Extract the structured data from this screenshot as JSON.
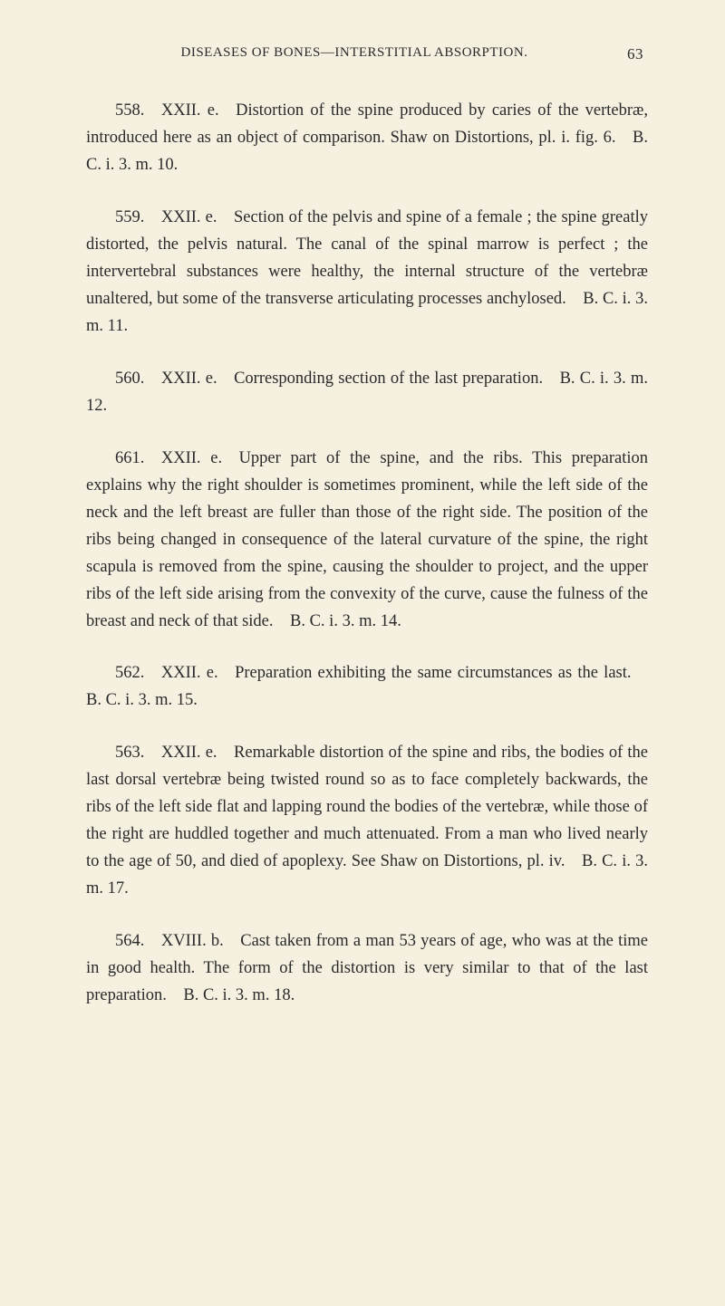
{
  "header": {
    "title": "DISEASES OF BONES—INTERSTITIAL ABSORPTION.",
    "pageNumber": "63"
  },
  "entries": [
    {
      "text": "558. XXII. e. Distortion of the spine produced by caries of the vertebræ, introduced here as an object of comparison. Shaw on Distortions, pl. i. fig. 6. B. C. i. 3. m. 10."
    },
    {
      "text": "559. XXII. e. Section of the pelvis and spine of a female ; the spine greatly distorted, the pelvis natural. The canal of the spinal marrow is perfect ; the intervertebral substances were healthy, the internal structure of the vertebræ unaltered, but some of the transverse articulating processes anchylosed. B. C. i. 3. m. 11."
    },
    {
      "text": "560. XXII. e. Corresponding section of the last preparation. B. C. i. 3. m. 12."
    },
    {
      "text": "661. XXII. e. Upper part of the spine, and the ribs. This preparation explains why the right shoulder is sometimes prominent, while the left side of the neck and the left breast are fuller than those of the right side. The position of the ribs being changed in consequence of the lateral curvature of the spine, the right scapula is removed from the spine, causing the shoulder to project, and the upper ribs of the left side arising from the convexity of the curve, cause the fulness of the breast and neck of that side. B. C. i. 3. m. 14."
    },
    {
      "text": "562. XXII. e. Preparation exhibiting the same circumstances as the last. B. C. i. 3. m. 15."
    },
    {
      "text": "563. XXII. e. Remarkable distortion of the spine and ribs, the bodies of the last dorsal vertebræ being twisted round so as to face completely backwards, the ribs of the left side flat and lapping round the bodies of the vertebræ, while those of the right are huddled together and much attenuated. From a man who lived nearly to the age of 50, and died of apoplexy. See Shaw on Distortions, pl. iv. B. C. i. 3. m. 17."
    },
    {
      "text": "564. XVIII. b. Cast taken from a man 53 years of age, who was at the time in good health. The form of the distortion is very similar to that of the last preparation. B. C. i. 3. m. 18."
    }
  ]
}
